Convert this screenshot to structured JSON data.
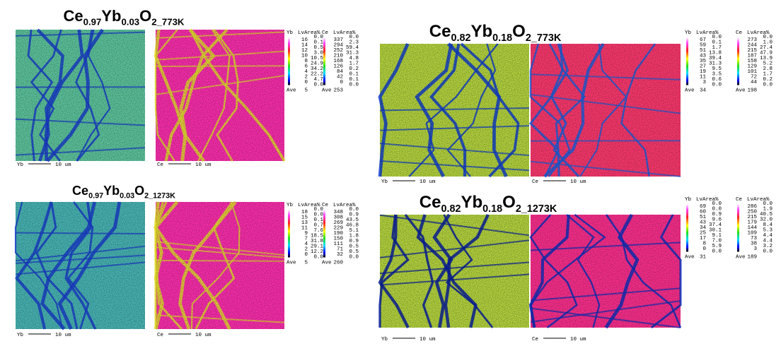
{
  "panels": [
    {
      "title": [
        "Ce",
        "0.97",
        "Yb",
        "0.03",
        "O",
        "2_773K"
      ],
      "maps": [
        {
          "element": "Yb",
          "scale_bar": "10 um"
        },
        {
          "element": "Ce",
          "scale_bar": "10 um"
        }
      ],
      "legends": [
        {
          "element": "Yb",
          "header": "LvArea%",
          "levels": [
            16,
            14,
            12,
            10,
            8,
            6,
            4,
            2,
            0
          ],
          "area": [
            "0.0",
            "0.1",
            "0.5",
            "3.0",
            "10.5",
            "24.9",
            "34.2",
            "22.2",
            "4.7",
            "0.0"
          ],
          "ave_label": "Ave",
          "ave": 5
        },
        {
          "element": "Ce",
          "header": "LvArea%",
          "levels": [
            337,
            294,
            252,
            210,
            168,
            126,
            84,
            42,
            0
          ],
          "area": [
            "0.0",
            "2.3",
            "59.4",
            "31.3",
            "4.8",
            "1.7",
            "0.2",
            "0.1",
            "0.1",
            "0.0"
          ],
          "ave_label": "Ave",
          "ave": 253
        }
      ]
    },
    {
      "title": [
        "Ce",
        "0.82",
        "Yb",
        "0.18",
        "O",
        "2_773K"
      ],
      "maps": [
        {
          "element": "Yb",
          "scale_bar": "10 um"
        },
        {
          "element": "Ce",
          "scale_bar": "10 um"
        }
      ],
      "legends": [
        {
          "element": "Yb",
          "header": "LvArea%",
          "levels": [
            67,
            59,
            51,
            43,
            35,
            27,
            19,
            11,
            3
          ],
          "area": [
            "0.0",
            "0.1",
            "1.7",
            "13.8",
            "39.4",
            "31.3",
            "9.5",
            "3.5",
            "0.6",
            "0.0"
          ],
          "ave_label": "Ave",
          "ave": 34
        },
        {
          "element": "Ce",
          "header": "LvArea%",
          "levels": [
            273,
            244,
            215,
            187,
            158,
            129,
            101,
            72,
            44
          ],
          "area": [
            "0.0",
            "1.0",
            "27.4",
            "47.9",
            "13.9",
            "5.2",
            "2.8",
            "1.7",
            "0.2",
            "0.0"
          ],
          "ave_label": "Ave",
          "ave": 198
        }
      ]
    },
    {
      "title": [
        "Ce",
        "0.97",
        "Yb",
        "0.03",
        "O",
        "2_1273K"
      ],
      "maps": [
        {
          "element": "Yb",
          "scale_bar": "10 um"
        },
        {
          "element": "Ce",
          "scale_bar": "10 um"
        }
      ],
      "legends": [
        {
          "element": "Yb",
          "header": "LvArea%",
          "levels": [
            18,
            15,
            13,
            11,
            9,
            7,
            4,
            2,
            0
          ],
          "area": [
            "0.0",
            "0.0",
            "0.1",
            "0.7",
            "7.6",
            "18.5",
            "31.8",
            "29.1",
            "12.2",
            "0.0"
          ],
          "ave_label": "Ave",
          "ave": 5
        },
        {
          "element": "Ce",
          "header": "LvArea%",
          "levels": [
            348,
            308,
            269,
            229,
            190,
            150,
            111,
            71,
            32
          ],
          "area": [
            "0.0",
            "0.9",
            "43.5",
            "46.8",
            "5.1",
            "1.8",
            "0.9",
            "0.5",
            "0.5",
            "0.0"
          ],
          "ave_label": "Ave",
          "ave": 260
        }
      ]
    },
    {
      "title": [
        "Ce",
        "0.82",
        "Yb",
        "0.18",
        "O",
        "2_1273K"
      ],
      "maps": [
        {
          "element": "Yb",
          "scale_bar": "10 um"
        },
        {
          "element": "Ce",
          "scale_bar": "10 um"
        }
      ],
      "legends": [
        {
          "element": "Yb",
          "header": "LvArea%",
          "levels": [
            69,
            60,
            51,
            43,
            34,
            25,
            17,
            8,
            0
          ],
          "area": [
            "0.0",
            "0.0",
            "0.9",
            "9.6",
            "37.4",
            "30.1",
            "9.1",
            "7.0",
            "5.9",
            "0.0"
          ],
          "ave_label": "Ave",
          "ave": 31
        },
        {
          "element": "Ce",
          "header": "LvArea%",
          "levels": [
            286,
            250,
            215,
            179,
            144,
            109,
            73,
            38,
            3
          ],
          "area": [
            "0.0",
            "1.9",
            "40.5",
            "32.0",
            "8.4",
            "5.3",
            "4.4",
            "4.4",
            "3.2",
            "0.0"
          ],
          "ave_label": "Ave",
          "ave": 189
        }
      ]
    }
  ]
}
